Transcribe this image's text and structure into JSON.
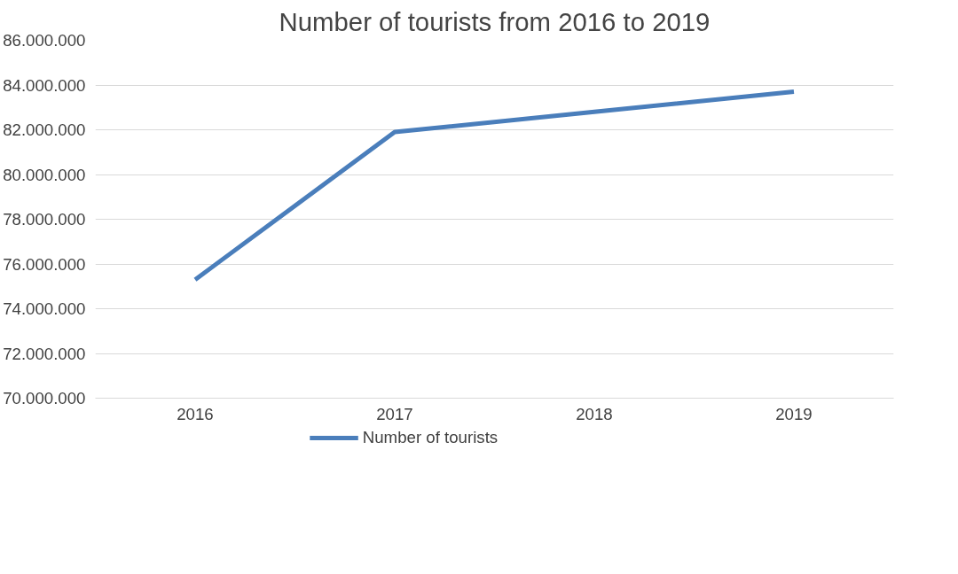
{
  "chart_data": {
    "type": "line",
    "title": "Number of tourists from 2016 to 2019",
    "categories": [
      "2016",
      "2017",
      "2018",
      "2019"
    ],
    "series": [
      {
        "name": "Number of tourists",
        "color": "#4a7ebb",
        "values": [
          75300000,
          81900000,
          82800000,
          83700000
        ]
      }
    ],
    "ylim": [
      70000000,
      86000000
    ],
    "yticks": [
      {
        "value": 70000000,
        "label": "70.000.000"
      },
      {
        "value": 72000000,
        "label": "72.000.000"
      },
      {
        "value": 74000000,
        "label": "74.000.000"
      },
      {
        "value": 76000000,
        "label": "76.000.000"
      },
      {
        "value": 78000000,
        "label": "78.000.000"
      },
      {
        "value": 80000000,
        "label": "80.000.000"
      },
      {
        "value": 82000000,
        "label": "82.000.000"
      },
      {
        "value": 84000000,
        "label": "84.000.000"
      },
      {
        "value": 86000000,
        "label": "86.000.000"
      }
    ],
    "grid": "y",
    "legend": "bottom",
    "marker": "none",
    "line_style": "solid"
  }
}
